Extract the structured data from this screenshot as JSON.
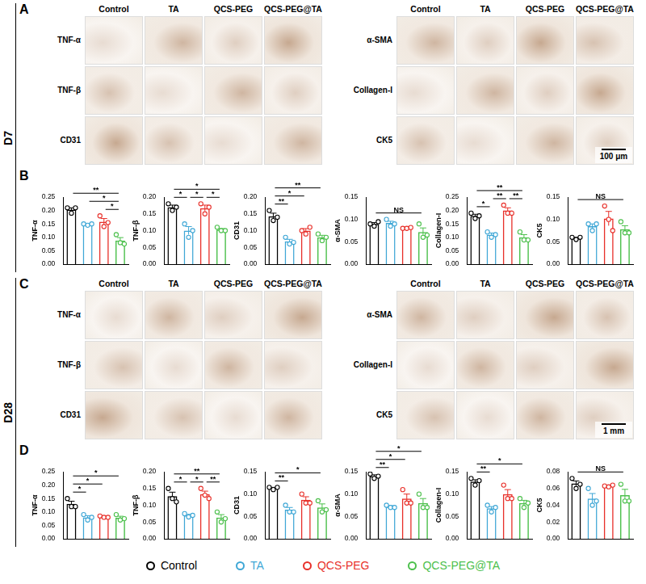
{
  "image_columns": [
    "Control",
    "TA",
    "QCS-PEG",
    "QCS-PEG@TA"
  ],
  "image_panels": [
    {
      "letter": "A",
      "timepoint": "D7",
      "scale_bar": "100 μm",
      "grids": [
        {
          "markers": [
            "TNF-α",
            "TNF-β",
            "CD31"
          ]
        },
        {
          "markers": [
            "α-SMA",
            "Collagen-I",
            "CK5"
          ]
        }
      ]
    },
    {
      "letter": "C",
      "timepoint": "D28",
      "scale_bar": "1 mm",
      "grids": [
        {
          "markers": [
            "TNF-α",
            "TNF-β",
            "CD31"
          ]
        },
        {
          "markers": [
            "α-SMA",
            "Collagen-I",
            "CK5"
          ]
        }
      ]
    }
  ],
  "chart_panels": [
    {
      "letter": "B",
      "timepoint": "D7"
    },
    {
      "letter": "D",
      "timepoint": "D28"
    }
  ],
  "shared_legend": [
    {
      "name": "Control",
      "color": "#000000"
    },
    {
      "name": "TA",
      "color": "#3fa7d6"
    },
    {
      "name": "QCS-PEG",
      "color": "#e8302a"
    },
    {
      "name": "QCS-PEG@TA",
      "color": "#4cc04c"
    }
  ],
  "chart_data": [
    {
      "type": "bar",
      "panel": "B",
      "y_label": "TNF-α",
      "categories": [
        null,
        null,
        null,
        null
      ],
      "values": [
        0.203,
        0.148,
        0.158,
        0.088
      ],
      "errors": [
        0.007,
        0.002,
        0.012,
        0.011
      ],
      "points": [
        [
          0.21,
          0.19,
          0.21
        ],
        [
          0.15,
          0.145,
          0.15
        ],
        [
          0.18,
          0.14,
          0.155
        ],
        [
          0.11,
          0.08,
          0.075
        ]
      ],
      "colors": [
        "#000000",
        "#3fa7d6",
        "#e8302a",
        "#4cc04c"
      ],
      "ylim": [
        0,
        0.25
      ],
      "yticks": [
        {
          "value": 0,
          "label": "0.00"
        },
        {
          "value": 0.05,
          "label": "0.05"
        },
        {
          "value": 0.1,
          "label": "0.10"
        },
        {
          "value": 0.15,
          "label": "0.15"
        },
        {
          "value": 0.2,
          "label": "0.20"
        },
        {
          "value": 0.25,
          "label": "0.25"
        }
      ],
      "tick_labels": "y",
      "grid": false,
      "significance": [
        {
          "from": 0,
          "to": 3,
          "label": "**"
        },
        {
          "from": 1,
          "to": 3,
          "label": "*"
        },
        {
          "from": 2,
          "to": 3,
          "label": "*"
        }
      ]
    },
    {
      "type": "bar",
      "panel": "B",
      "y_label": "TNF-β",
      "categories": [
        null,
        null,
        null,
        null
      ],
      "values": [
        0.17,
        0.1,
        0.167,
        0.103
      ],
      "errors": [
        0.006,
        0.012,
        0.009,
        0.003
      ],
      "points": [
        [
          0.18,
          0.16,
          0.17
        ],
        [
          0.12,
          0.08,
          0.1
        ],
        [
          0.18,
          0.15,
          0.17
        ],
        [
          0.11,
          0.1,
          0.1
        ]
      ],
      "colors": [
        "#000000",
        "#3fa7d6",
        "#e8302a",
        "#4cc04c"
      ],
      "ylim": [
        0,
        0.2
      ],
      "yticks": [
        {
          "value": 0,
          "label": "0.00"
        },
        {
          "value": 0.05,
          "label": "0.05"
        },
        {
          "value": 0.1,
          "label": "0.10"
        },
        {
          "value": 0.15,
          "label": "0.15"
        },
        {
          "value": 0.2,
          "label": "0.20"
        }
      ],
      "tick_labels": "y",
      "grid": false,
      "significance": [
        {
          "from": 0,
          "to": 3,
          "label": "*"
        },
        {
          "from": 1,
          "to": 2,
          "label": "*"
        },
        {
          "from": 0,
          "to": 1,
          "label": "*"
        },
        {
          "from": 2,
          "to": 3,
          "label": "*"
        }
      ]
    },
    {
      "type": "bar",
      "panel": "B",
      "y_label": "CD31",
      "categories": [
        null,
        null,
        null,
        null
      ],
      "values": [
        0.143,
        0.068,
        0.1,
        0.08
      ],
      "errors": [
        0.009,
        0.006,
        0.006,
        0.006
      ],
      "points": [
        [
          0.16,
          0.13,
          0.14
        ],
        [
          0.08,
          0.06,
          0.065
        ],
        [
          0.1,
          0.09,
          0.11
        ],
        [
          0.09,
          0.07,
          0.08
        ]
      ],
      "colors": [
        "#000000",
        "#3fa7d6",
        "#e8302a",
        "#4cc04c"
      ],
      "ylim": [
        0,
        0.2
      ],
      "yticks": [
        {
          "value": 0,
          "label": "0.00"
        },
        {
          "value": 0.05,
          "label": "0.05"
        },
        {
          "value": 0.1,
          "label": "0.10"
        },
        {
          "value": 0.15,
          "label": "0.15"
        },
        {
          "value": 0.2,
          "label": "0.20"
        }
      ],
      "tick_labels": "y",
      "grid": false,
      "significance": [
        {
          "from": 0,
          "to": 3,
          "label": "**"
        },
        {
          "from": 0,
          "to": 2,
          "label": "*"
        },
        {
          "from": 0,
          "to": 1,
          "label": "**"
        }
      ]
    },
    {
      "type": "bar",
      "panel": "B",
      "y_label": "α-SMA",
      "categories": [
        null,
        null,
        null,
        null
      ],
      "values": [
        0.09,
        0.092,
        0.081,
        0.072
      ],
      "errors": [
        0.003,
        0.004,
        0.001,
        0.009
      ],
      "points": [
        [
          0.09,
          0.085,
          0.095
        ],
        [
          0.1,
          0.085,
          0.09
        ],
        [
          0.08,
          0.08,
          0.082
        ],
        [
          0.09,
          0.06,
          0.065
        ]
      ],
      "colors": [
        "#000000",
        "#3fa7d6",
        "#e8302a",
        "#4cc04c"
      ],
      "ylim": [
        0,
        0.15
      ],
      "yticks": [
        {
          "value": 0,
          "label": "0.00"
        },
        {
          "value": 0.05,
          "label": "0.05"
        },
        {
          "value": 0.1,
          "label": "0.10"
        },
        {
          "value": 0.15,
          "label": "0.15"
        }
      ],
      "tick_labels": "y",
      "grid": false,
      "significance": [
        {
          "from": 0,
          "to": 3,
          "label": "NS"
        }
      ]
    },
    {
      "type": "bar",
      "panel": "B",
      "y_label": "Collagen-I",
      "categories": [
        null,
        null,
        null,
        null
      ],
      "values": [
        0.18,
        0.11,
        0.2,
        0.1
      ],
      "errors": [
        0.006,
        0.006,
        0.01,
        0.01
      ],
      "points": [
        [
          0.19,
          0.17,
          0.18
        ],
        [
          0.12,
          0.1,
          0.11
        ],
        [
          0.22,
          0.19,
          0.19
        ],
        [
          0.12,
          0.09,
          0.09
        ]
      ],
      "colors": [
        "#000000",
        "#3fa7d6",
        "#e8302a",
        "#4cc04c"
      ],
      "ylim": [
        0,
        0.25
      ],
      "yticks": [
        {
          "value": 0,
          "label": "0.00"
        },
        {
          "value": 0.05,
          "label": "0.05"
        },
        {
          "value": 0.1,
          "label": "0.10"
        },
        {
          "value": 0.15,
          "label": "0.15"
        },
        {
          "value": 0.2,
          "label": "0.20"
        },
        {
          "value": 0.25,
          "label": "0.25"
        }
      ],
      "tick_labels": "y",
      "grid": false,
      "significance": [
        {
          "from": 0,
          "to": 3,
          "label": "**"
        },
        {
          "from": 1,
          "to": 2,
          "label": "**"
        },
        {
          "from": 0,
          "to": 1,
          "label": "*"
        },
        {
          "from": 2,
          "to": 3,
          "label": "**"
        }
      ]
    },
    {
      "type": "bar",
      "panel": "B",
      "y_label": "CK5",
      "categories": [
        null,
        null,
        null,
        null
      ],
      "values": [
        0.058,
        0.085,
        0.102,
        0.078
      ],
      "errors": [
        0.002,
        0.005,
        0.016,
        0.008
      ],
      "points": [
        [
          0.06,
          0.055,
          0.06
        ],
        [
          0.09,
          0.075,
          0.09
        ],
        [
          0.13,
          0.1,
          0.075
        ],
        [
          0.095,
          0.07,
          0.07
        ]
      ],
      "colors": [
        "#000000",
        "#3fa7d6",
        "#e8302a",
        "#4cc04c"
      ],
      "ylim": [
        0,
        0.15
      ],
      "yticks": [
        {
          "value": 0,
          "label": "0.00"
        },
        {
          "value": 0.05,
          "label": "0.05"
        },
        {
          "value": 0.1,
          "label": "0.10"
        },
        {
          "value": 0.15,
          "label": "0.15"
        }
      ],
      "tick_labels": "y",
      "grid": false,
      "significance": [
        {
          "from": 0,
          "to": 3,
          "label": "NS"
        }
      ]
    },
    {
      "type": "bar",
      "panel": "D",
      "y_label": "TNF-α",
      "categories": [
        null,
        null,
        null,
        null
      ],
      "values": [
        0.13,
        0.08,
        0.082,
        0.078
      ],
      "errors": [
        0.01,
        0.006,
        0.002,
        0.006
      ],
      "points": [
        [
          0.15,
          0.12,
          0.12
        ],
        [
          0.09,
          0.07,
          0.08
        ],
        [
          0.085,
          0.08,
          0.08
        ],
        [
          0.09,
          0.07,
          0.075
        ]
      ],
      "colors": [
        "#000000",
        "#3fa7d6",
        "#e8302a",
        "#4cc04c"
      ],
      "ylim": [
        0,
        0.25
      ],
      "yticks": [
        {
          "value": 0,
          "label": "0.00"
        },
        {
          "value": 0.05,
          "label": "0.05"
        },
        {
          "value": 0.1,
          "label": "0.10"
        },
        {
          "value": 0.15,
          "label": "0.15"
        },
        {
          "value": 0.2,
          "label": "0.20"
        },
        {
          "value": 0.25,
          "label": "0.25"
        }
      ],
      "tick_labels": "y",
      "grid": false,
      "significance": [
        {
          "from": 0,
          "to": 3,
          "label": "*"
        },
        {
          "from": 0,
          "to": 2,
          "label": "*"
        },
        {
          "from": 0,
          "to": 1,
          "label": "*"
        }
      ]
    },
    {
      "type": "bar",
      "panel": "D",
      "y_label": "TNF-β",
      "categories": [
        null,
        null,
        null,
        null
      ],
      "values": [
        0.127,
        0.07,
        0.133,
        0.063
      ],
      "errors": [
        0.012,
        0.003,
        0.009,
        0.009
      ],
      "points": [
        [
          0.15,
          0.12,
          0.11
        ],
        [
          0.075,
          0.065,
          0.07
        ],
        [
          0.15,
          0.13,
          0.12
        ],
        [
          0.08,
          0.05,
          0.06
        ]
      ],
      "colors": [
        "#000000",
        "#3fa7d6",
        "#e8302a",
        "#4cc04c"
      ],
      "ylim": [
        0,
        0.2
      ],
      "yticks": [
        {
          "value": 0,
          "label": "0.00"
        },
        {
          "value": 0.05,
          "label": "0.05"
        },
        {
          "value": 0.1,
          "label": "0.10"
        },
        {
          "value": 0.15,
          "label": "0.15"
        },
        {
          "value": 0.2,
          "label": "0.20"
        }
      ],
      "tick_labels": "y",
      "grid": false,
      "significance": [
        {
          "from": 0,
          "to": 3,
          "label": "**"
        },
        {
          "from": 0,
          "to": 1,
          "label": "*"
        },
        {
          "from": 1,
          "to": 2,
          "label": "*"
        },
        {
          "from": 2,
          "to": 3,
          "label": "**"
        }
      ]
    },
    {
      "type": "bar",
      "panel": "D",
      "y_label": "CD31",
      "categories": [
        null,
        null,
        null,
        null
      ],
      "values": [
        0.113,
        0.065,
        0.087,
        0.07
      ],
      "errors": [
        0.002,
        0.005,
        0.007,
        0.008
      ],
      "points": [
        [
          0.115,
          0.11,
          0.115
        ],
        [
          0.075,
          0.06,
          0.06
        ],
        [
          0.1,
          0.08,
          0.08
        ],
        [
          0.085,
          0.06,
          0.065
        ]
      ],
      "colors": [
        "#000000",
        "#3fa7d6",
        "#e8302a",
        "#4cc04c"
      ],
      "ylim": [
        0,
        0.15
      ],
      "yticks": [
        {
          "value": 0,
          "label": "0.00"
        },
        {
          "value": 0.05,
          "label": "0.05"
        },
        {
          "value": 0.1,
          "label": "0.10"
        },
        {
          "value": 0.15,
          "label": "0.15"
        }
      ],
      "tick_labels": "y",
      "grid": false,
      "significance": [
        {
          "from": 0,
          "to": 3,
          "label": "*"
        },
        {
          "from": 0,
          "to": 1,
          "label": "**"
        }
      ]
    },
    {
      "type": "bar",
      "panel": "D",
      "y_label": "α-SMA",
      "categories": [
        null,
        null,
        null,
        null
      ],
      "values": [
        0.14,
        0.072,
        0.09,
        0.08
      ],
      "errors": [
        0.003,
        0.002,
        0.01,
        0.01
      ],
      "points": [
        [
          0.145,
          0.135,
          0.14
        ],
        [
          0.075,
          0.07,
          0.07
        ],
        [
          0.11,
          0.08,
          0.08
        ],
        [
          0.1,
          0.07,
          0.07
        ]
      ],
      "colors": [
        "#000000",
        "#3fa7d6",
        "#e8302a",
        "#4cc04c"
      ],
      "ylim": [
        0,
        0.15
      ],
      "yticks": [
        {
          "value": 0,
          "label": "0.00"
        },
        {
          "value": 0.05,
          "label": "0.05"
        },
        {
          "value": 0.1,
          "label": "0.10"
        },
        {
          "value": 0.15,
          "label": "0.15"
        }
      ],
      "tick_labels": "y",
      "grid": false,
      "significance": [
        {
          "from": 0,
          "to": 3,
          "label": "*"
        },
        {
          "from": 0,
          "to": 2,
          "label": "*"
        },
        {
          "from": 0,
          "to": 1,
          "label": "**"
        }
      ]
    },
    {
      "type": "bar",
      "panel": "D",
      "y_label": "Collagen-I",
      "categories": [
        null,
        null,
        null,
        null
      ],
      "values": [
        0.128,
        0.068,
        0.1,
        0.08
      ],
      "errors": [
        0.004,
        0.004,
        0.01,
        0.006
      ],
      "points": [
        [
          0.135,
          0.12,
          0.13
        ],
        [
          0.075,
          0.06,
          0.07
        ],
        [
          0.12,
          0.09,
          0.09
        ],
        [
          0.09,
          0.07,
          0.08
        ]
      ],
      "colors": [
        "#000000",
        "#3fa7d6",
        "#e8302a",
        "#4cc04c"
      ],
      "ylim": [
        0,
        0.15
      ],
      "yticks": [
        {
          "value": 0,
          "label": "0.00"
        },
        {
          "value": 0.05,
          "label": "0.05"
        },
        {
          "value": 0.1,
          "label": "0.10"
        },
        {
          "value": 0.15,
          "label": "0.15"
        }
      ],
      "tick_labels": "y",
      "grid": false,
      "significance": [
        {
          "from": 0,
          "to": 3,
          "label": "*"
        },
        {
          "from": 0,
          "to": 1,
          "label": "**"
        }
      ]
    },
    {
      "type": "bar",
      "panel": "D",
      "y_label": "CK5",
      "categories": [
        null,
        null,
        null,
        null
      ],
      "values": [
        0.066,
        0.048,
        0.063,
        0.052
      ],
      "errors": [
        0.003,
        0.006,
        0.001,
        0.007
      ],
      "points": [
        [
          0.072,
          0.06,
          0.065
        ],
        [
          0.06,
          0.04,
          0.045
        ],
        [
          0.063,
          0.062,
          0.064
        ],
        [
          0.065,
          0.045,
          0.045
        ]
      ],
      "colors": [
        "#000000",
        "#3fa7d6",
        "#e8302a",
        "#4cc04c"
      ],
      "ylim": [
        0,
        0.08
      ],
      "yticks": [
        {
          "value": 0,
          "label": "0.00"
        },
        {
          "value": 0.02,
          "label": "0.02"
        },
        {
          "value": 0.04,
          "label": "0.04"
        },
        {
          "value": 0.06,
          "label": "0.06"
        },
        {
          "value": 0.08,
          "label": "0.08"
        }
      ],
      "tick_labels": "y",
      "grid": false,
      "significance": [
        {
          "from": 0,
          "to": 3,
          "label": "NS"
        }
      ]
    }
  ]
}
